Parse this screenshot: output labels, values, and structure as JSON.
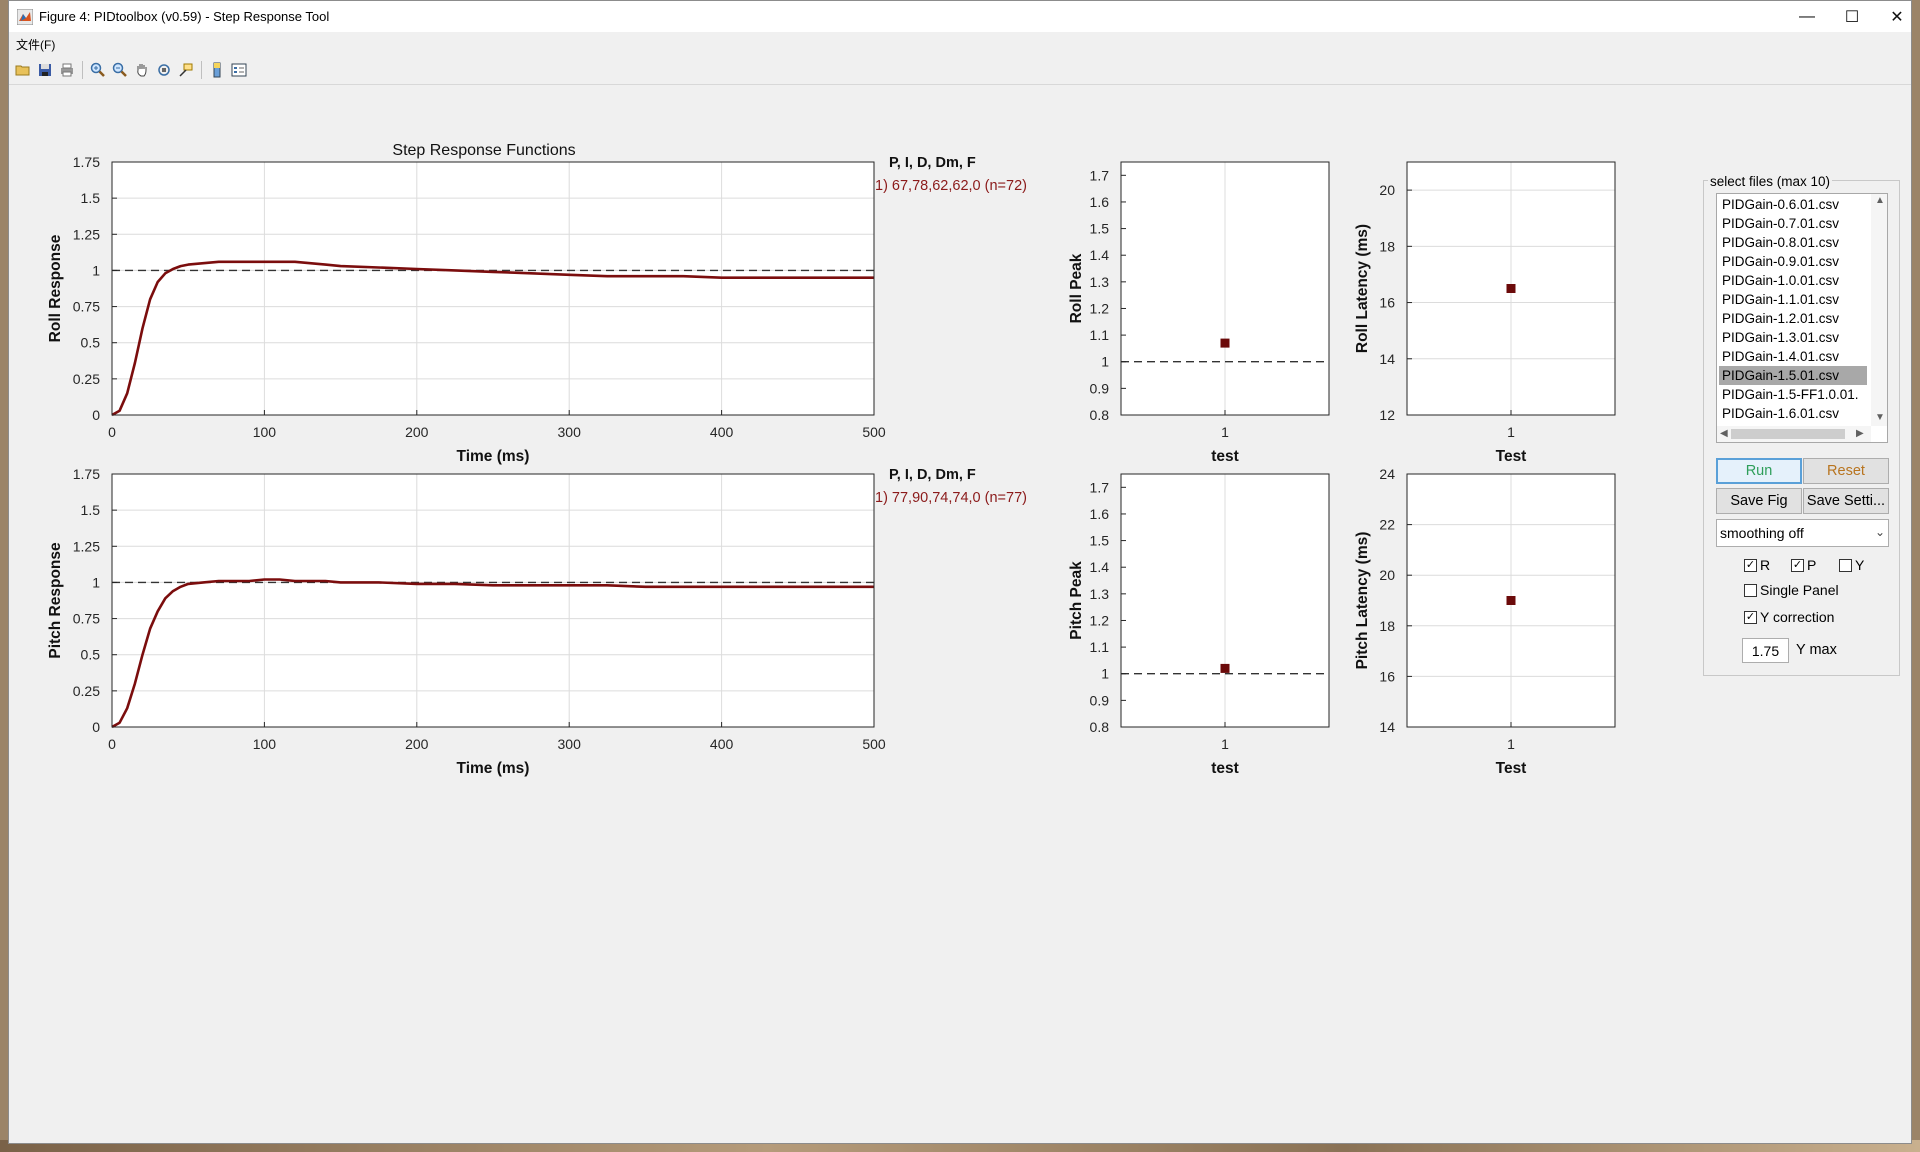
{
  "window": {
    "title": "Figure 4: PIDtoolbox (v0.59) - Step Response Tool",
    "minimize_icon": "minimize-icon",
    "maximize_icon": "maximize-icon",
    "close_icon": "close-icon"
  },
  "menubar": {
    "file": "文件(F)"
  },
  "toolbar": {
    "icons": [
      "open-folder-icon",
      "save-icon",
      "print-icon",
      "zoom-in-icon",
      "zoom-out-icon",
      "pan-hand-icon",
      "rotate-3d-icon",
      "data-cursor-icon",
      "colorbar-icon",
      "legend-icon"
    ]
  },
  "figure_title": "Step Response Functions",
  "colors": {
    "series": "#7b0d0d",
    "reference": "#333333",
    "grid": "#dcdcdc",
    "gain_text": "#8b1a1a"
  },
  "gains": [
    {
      "header": "P, I, D, Dm, F",
      "value": "1) 67,78,62,62,0  (n=72)"
    },
    {
      "header": "P, I, D, Dm, F",
      "value": "1) 77,90,74,74,0  (n=77)"
    }
  ],
  "chart_data": [
    {
      "type": "line",
      "title": "Step Response Functions",
      "xlabel": "Time (ms)",
      "ylabel": "Roll Response",
      "xlim": [
        0,
        500
      ],
      "ylim": [
        0,
        1.75
      ],
      "xticks": [
        "0",
        "100",
        "200",
        "300",
        "400",
        "500"
      ],
      "yticks": [
        "0",
        "0.25",
        "0.5",
        "0.75",
        "1",
        "1.25",
        "1.5",
        "1.75"
      ],
      "grid": true,
      "reference_y": 1,
      "x": [
        0,
        5,
        10,
        15,
        20,
        25,
        30,
        35,
        40,
        45,
        50,
        60,
        70,
        80,
        90,
        100,
        110,
        120,
        130,
        140,
        150,
        175,
        200,
        225,
        250,
        275,
        300,
        325,
        350,
        375,
        400,
        425,
        450,
        475,
        500
      ],
      "series": [
        {
          "values": [
            0,
            0.03,
            0.15,
            0.36,
            0.6,
            0.8,
            0.92,
            0.98,
            1.01,
            1.03,
            1.04,
            1.05,
            1.06,
            1.06,
            1.06,
            1.06,
            1.06,
            1.06,
            1.05,
            1.04,
            1.03,
            1.02,
            1.01,
            1.0,
            0.99,
            0.98,
            0.97,
            0.96,
            0.96,
            0.96,
            0.95,
            0.95,
            0.95,
            0.95,
            0.95
          ]
        }
      ]
    },
    {
      "type": "line",
      "xlabel": "Time (ms)",
      "ylabel": "Pitch Response",
      "xlim": [
        0,
        500
      ],
      "ylim": [
        0,
        1.75
      ],
      "xticks": [
        "0",
        "100",
        "200",
        "300",
        "400",
        "500"
      ],
      "yticks": [
        "0",
        "0.25",
        "0.5",
        "0.75",
        "1",
        "1.25",
        "1.5",
        "1.75"
      ],
      "grid": true,
      "reference_y": 1,
      "x": [
        0,
        5,
        10,
        15,
        20,
        25,
        30,
        35,
        40,
        45,
        50,
        60,
        70,
        80,
        90,
        100,
        110,
        120,
        130,
        140,
        150,
        175,
        200,
        225,
        250,
        275,
        300,
        325,
        350,
        375,
        400,
        425,
        450,
        475,
        500
      ],
      "series": [
        {
          "values": [
            0,
            0.03,
            0.13,
            0.3,
            0.5,
            0.68,
            0.8,
            0.89,
            0.94,
            0.97,
            0.99,
            1.0,
            1.01,
            1.01,
            1.01,
            1.02,
            1.02,
            1.01,
            1.01,
            1.01,
            1.0,
            1.0,
            0.99,
            0.99,
            0.98,
            0.98,
            0.98,
            0.98,
            0.97,
            0.97,
            0.97,
            0.97,
            0.97,
            0.97,
            0.97
          ]
        }
      ]
    },
    {
      "type": "scatter",
      "ylabel": "Roll Peak",
      "xlabel": "test",
      "xlim": [
        0.5,
        1.5
      ],
      "ylim": [
        0.8,
        1.75
      ],
      "xticks": [
        "1"
      ],
      "yticks": [
        "0.8",
        "0.9",
        "1",
        "1.1",
        "1.2",
        "1.3",
        "1.4",
        "1.5",
        "1.6",
        "1.7"
      ],
      "reference_y": 1,
      "points": [
        {
          "x": 1,
          "y": 1.07
        }
      ]
    },
    {
      "type": "scatter",
      "ylabel": "Roll Latency (ms)",
      "xlabel": "Test",
      "xlim": [
        0.5,
        1.5
      ],
      "ylim": [
        12,
        21
      ],
      "xticks": [
        "1"
      ],
      "yticks": [
        "12",
        "14",
        "16",
        "18",
        "20"
      ],
      "points": [
        {
          "x": 1,
          "y": 16.5
        }
      ]
    },
    {
      "type": "scatter",
      "ylabel": "Pitch Peak",
      "xlabel": "test",
      "xlim": [
        0.5,
        1.5
      ],
      "ylim": [
        0.8,
        1.75
      ],
      "xticks": [
        "1"
      ],
      "yticks": [
        "0.8",
        "0.9",
        "1",
        "1.1",
        "1.2",
        "1.3",
        "1.4",
        "1.5",
        "1.6",
        "1.7"
      ],
      "reference_y": 1,
      "points": [
        {
          "x": 1,
          "y": 1.02
        }
      ]
    },
    {
      "type": "scatter",
      "ylabel": "Pitch Latency (ms)",
      "xlabel": "Test",
      "xlim": [
        0.5,
        1.5
      ],
      "ylim": [
        14,
        24
      ],
      "xticks": [
        "1"
      ],
      "yticks": [
        "14",
        "16",
        "18",
        "20",
        "22",
        "24"
      ],
      "points": [
        {
          "x": 1,
          "y": 19
        }
      ]
    }
  ],
  "panel": {
    "title": "select files (max 10)",
    "files": [
      "PIDGain-0.6.01.csv",
      "PIDGain-0.7.01.csv",
      "PIDGain-0.8.01.csv",
      "PIDGain-0.9.01.csv",
      "PIDGain-1.0.01.csv",
      "PIDGain-1.1.01.csv",
      "PIDGain-1.2.01.csv",
      "PIDGain-1.3.01.csv",
      "PIDGain-1.4.01.csv",
      "PIDGain-1.5.01.csv",
      "PIDGain-1.5-FF1.0.01.",
      "PIDGain-1.6.01.csv"
    ],
    "selected_file": "PIDGain-1.5.01.csv",
    "run": "Run",
    "reset": "Reset",
    "save_fig": "Save Fig",
    "save_settings": "Save Setti...",
    "smoothing": "smoothing off",
    "check_r": "R",
    "check_p": "P",
    "check_y": "Y",
    "single_panel": "Single Panel",
    "y_correction": "Y correction",
    "ymax_value": "1.75",
    "ymax_label": "Y max"
  }
}
